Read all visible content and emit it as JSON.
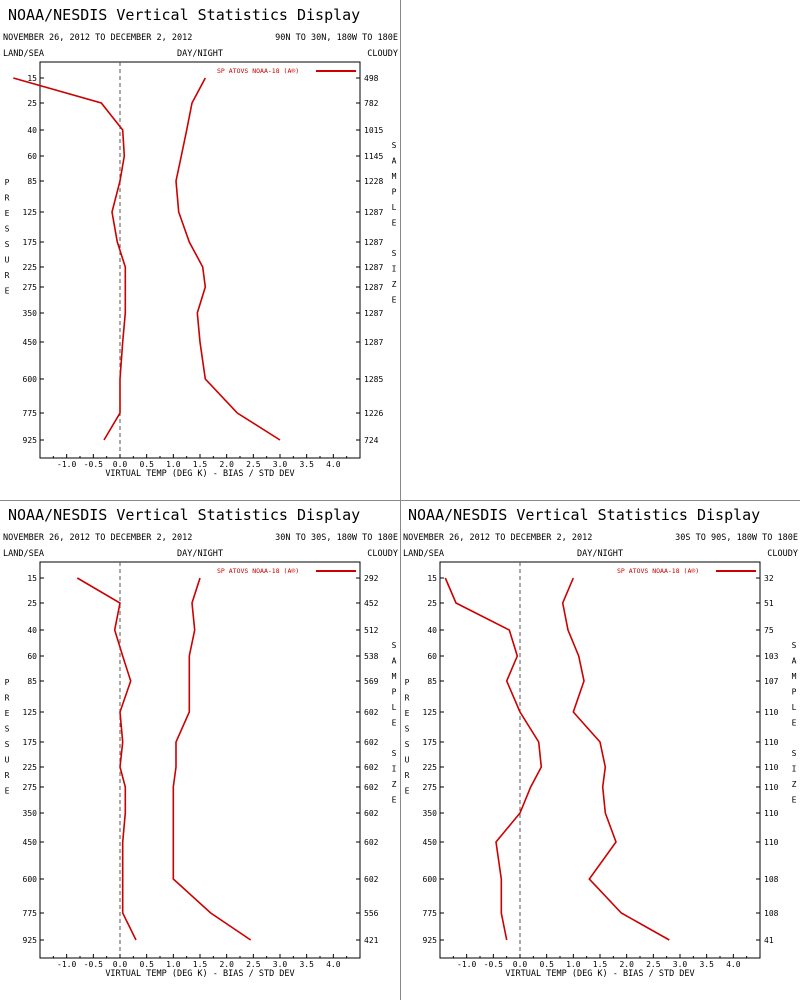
{
  "header": {
    "title": "NOAA/NESDIS Vertical Statistics Display",
    "date_range": "NOVEMBER 26, 2012 TO DECEMBER 2, 2012",
    "land_sea": "LAND/SEA",
    "day_night": "DAY/NIGHT",
    "cloudy": "CLOUDY",
    "legend": "SP ATOVS NOAA-18 (A®)",
    "left_label": "PRESSURE",
    "right_label": "SAMPLE SIZE",
    "xlabel": "VIRTUAL TEMP (DEG K) - BIAS / STD DEV"
  },
  "colors": {
    "series": "#cc0000",
    "zero_line": "#555555",
    "divider": "#8a8a8a"
  },
  "chart_data": [
    {
      "type": "line",
      "region": "90N TO 30N, 180W TO 180E",
      "xlim": [
        -1.5,
        4.5
      ],
      "xticks": [
        "-1.0",
        "-0.5",
        "0.0",
        "0.5",
        "1.0",
        "1.5",
        "2.0",
        "2.5",
        "3.0",
        "3.5",
        "4.0"
      ],
      "pressure_levels": [
        "15",
        "25",
        "40",
        "60",
        "85",
        "125",
        "175",
        "225",
        "275",
        "350",
        "450",
        "600",
        "775",
        "925"
      ],
      "sample_size": [
        "498",
        "782",
        "1015",
        "1145",
        "1228",
        "1287",
        "1287",
        "1287",
        "1287",
        "1287",
        "1287",
        "1285",
        "1226",
        "724"
      ],
      "series": [
        {
          "name": "BIAS",
          "values": [
            -2.0,
            -0.35,
            0.05,
            0.08,
            0.0,
            -0.15,
            -0.05,
            0.1,
            0.1,
            0.1,
            0.05,
            0.0,
            0.0,
            -0.3
          ]
        },
        {
          "name": "STD DEV",
          "values": [
            1.6,
            1.35,
            1.25,
            1.15,
            1.05,
            1.1,
            1.3,
            1.55,
            1.6,
            1.45,
            1.5,
            1.6,
            2.2,
            3.0
          ]
        }
      ]
    },
    {
      "type": "line",
      "region": "30N TO 30S, 180W TO 180E",
      "xlim": [
        -1.5,
        4.5
      ],
      "xticks": [
        "-1.0",
        "-0.5",
        "0.0",
        "0.5",
        "1.0",
        "1.5",
        "2.0",
        "2.5",
        "3.0",
        "3.5",
        "4.0"
      ],
      "pressure_levels": [
        "15",
        "25",
        "40",
        "60",
        "85",
        "125",
        "175",
        "225",
        "275",
        "350",
        "450",
        "600",
        "775",
        "925"
      ],
      "sample_size": [
        "292",
        "452",
        "512",
        "538",
        "569",
        "602",
        "602",
        "602",
        "602",
        "602",
        "602",
        "602",
        "556",
        "421"
      ],
      "series": [
        {
          "name": "BIAS",
          "values": [
            -0.8,
            0.0,
            -0.1,
            0.05,
            0.2,
            0.0,
            0.05,
            0.0,
            0.1,
            0.1,
            0.05,
            0.05,
            0.05,
            0.3
          ]
        },
        {
          "name": "STD DEV",
          "values": [
            1.5,
            1.35,
            1.4,
            1.3,
            1.3,
            1.3,
            1.05,
            1.05,
            1.0,
            1.0,
            1.0,
            1.0,
            1.7,
            2.45
          ]
        }
      ]
    },
    {
      "type": "line",
      "region": "30S TO 90S, 180W TO 180E",
      "xlim": [
        -1.5,
        4.5
      ],
      "xticks": [
        "-1.0",
        "-0.5",
        "0.0",
        "0.5",
        "1.0",
        "1.5",
        "2.0",
        "2.5",
        "3.0",
        "3.5",
        "4.0"
      ],
      "pressure_levels": [
        "15",
        "25",
        "40",
        "60",
        "85",
        "125",
        "175",
        "225",
        "275",
        "350",
        "450",
        "600",
        "775",
        "925"
      ],
      "sample_size": [
        "32",
        "51",
        "75",
        "103",
        "107",
        "110",
        "110",
        "110",
        "110",
        "110",
        "110",
        "108",
        "108",
        "41"
      ],
      "series": [
        {
          "name": "BIAS",
          "values": [
            -1.4,
            -1.2,
            -0.2,
            -0.05,
            -0.25,
            0.0,
            0.35,
            0.4,
            0.2,
            0.0,
            -0.45,
            -0.35,
            -0.35,
            -0.25
          ]
        },
        {
          "name": "STD DEV",
          "values": [
            1.0,
            0.8,
            0.9,
            1.1,
            1.2,
            1.0,
            1.5,
            1.6,
            1.55,
            1.6,
            1.8,
            1.3,
            1.9,
            2.8
          ]
        }
      ]
    }
  ]
}
